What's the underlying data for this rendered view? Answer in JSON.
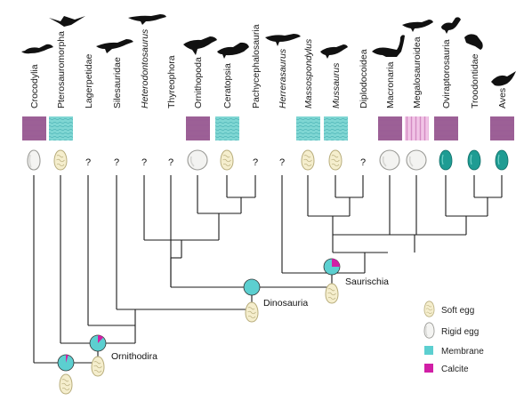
{
  "taxa": [
    {
      "name": "Crocodylia",
      "italic": false,
      "shell": "rigid",
      "tissue": "purple",
      "silhouette": "crocodile"
    },
    {
      "name": "Pterosauromorpha",
      "italic": false,
      "shell": "soft",
      "tissue": "membrane",
      "silhouette": "pterosaur"
    },
    {
      "name": "Lagerpetidae",
      "italic": false,
      "shell": "unknown",
      "tissue": "none",
      "silhouette": "none"
    },
    {
      "name": "Silesauridae",
      "italic": false,
      "shell": "unknown",
      "tissue": "none",
      "silhouette": "silesaurid"
    },
    {
      "name": "Heterodontosaurus",
      "italic": true,
      "shell": "unknown",
      "tissue": "none",
      "silhouette": "heterodontosaur"
    },
    {
      "name": "Thyreophora",
      "italic": false,
      "shell": "unknown",
      "tissue": "none",
      "silhouette": "none"
    },
    {
      "name": "Ornithopoda",
      "italic": false,
      "shell": "rigid",
      "tissue": "purple",
      "silhouette": "ornithopod"
    },
    {
      "name": "Ceratopsia",
      "italic": false,
      "shell": "soft",
      "tissue": "membrane",
      "silhouette": "ceratopsian"
    },
    {
      "name": "Pachycephalosauria",
      "italic": false,
      "shell": "unknown",
      "tissue": "none",
      "silhouette": "none"
    },
    {
      "name": "Herrerasaurus",
      "italic": true,
      "shell": "unknown",
      "tissue": "none",
      "silhouette": "herrerasaur"
    },
    {
      "name": "Massospondylus",
      "italic": true,
      "shell": "soft",
      "tissue": "membrane",
      "silhouette": "none"
    },
    {
      "name": "Mussaurus",
      "italic": true,
      "shell": "soft",
      "tissue": "membrane",
      "silhouette": "sauropodomorph"
    },
    {
      "name": "Diplodocoidea",
      "italic": false,
      "shell": "unknown",
      "tissue": "none",
      "silhouette": "none"
    },
    {
      "name": "Macronaria",
      "italic": false,
      "shell": "rigid",
      "tissue": "purple",
      "silhouette": "sauropod"
    },
    {
      "name": "Megalosauroidea",
      "italic": false,
      "shell": "rigid",
      "tissue": "pink",
      "silhouette": "theropod"
    },
    {
      "name": "Oviraptorosauria",
      "italic": false,
      "shell": "teal",
      "tissue": "purple",
      "silhouette": "oviraptor"
    },
    {
      "name": "Troodontidae",
      "italic": false,
      "shell": "teal",
      "tissue": "none",
      "silhouette": "troodontid"
    },
    {
      "name": "Aves",
      "italic": false,
      "shell": "teal",
      "tissue": "purple",
      "silhouette": "bird"
    }
  ],
  "unknown_mark": "?",
  "clades": [
    {
      "id": "ornithodira",
      "label": "Ornithodira",
      "calcite_fraction": 0.12
    },
    {
      "id": "dinosauria",
      "label": "Dinosauria",
      "calcite_fraction": 0.0
    },
    {
      "id": "saurischia",
      "label": "Saurischia",
      "calcite_fraction": 0.25
    },
    {
      "id": "root",
      "label": "",
      "calcite_fraction": 0.05
    }
  ],
  "legend": {
    "soft_egg": "Soft egg",
    "rigid_egg": "Rigid egg",
    "membrane": "Membrane",
    "calcite": "Calcite"
  },
  "colors": {
    "membrane": "#5ccfd0",
    "calcite": "#d11fa6",
    "eggshell_purple": "#a35a9c",
    "eggshell_pink": "#e6a6d8",
    "teal_egg": "#1a9e95",
    "soft_egg_fill": "#f3ecc8",
    "rigid_egg_fill": "#f2f2f0",
    "branch": "#1a1a1a"
  }
}
